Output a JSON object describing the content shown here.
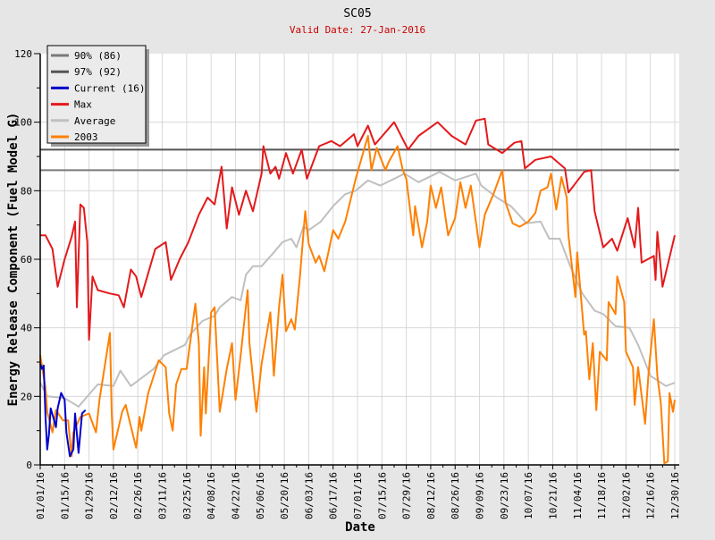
{
  "chart_data": {
    "type": "line",
    "title": "SC05",
    "subtitle": "Valid Date: 27-Jan-2016",
    "xlabel": "Date",
    "ylabel": "Energy Release Component (Fuel Model G)",
    "ylim": [
      0,
      120
    ],
    "yticks": [
      0,
      20,
      40,
      60,
      80,
      100,
      120
    ],
    "xlim": [
      "01/01/16",
      "12/30/16"
    ],
    "xticks": [
      "01/01/16",
      "01/15/16",
      "01/29/16",
      "02/12/16",
      "02/26/16",
      "03/11/16",
      "03/25/16",
      "04/08/16",
      "04/22/16",
      "05/06/16",
      "05/20/16",
      "06/03/16",
      "06/17/16",
      "07/01/16",
      "07/15/16",
      "07/29/16",
      "08/12/16",
      "08/26/16",
      "09/09/16",
      "09/23/16",
      "10/07/16",
      "10/21/16",
      "11/04/16",
      "11/18/16",
      "12/02/16",
      "12/16/16",
      "12/30/16"
    ],
    "grid": true,
    "legend_placement": "top-left",
    "thresholds": [
      {
        "name": "90% (86)",
        "value": 86,
        "color": "#7a7a7a"
      },
      {
        "name": "97% (92)",
        "value": 92,
        "color": "#555555"
      }
    ],
    "series": [
      {
        "name": "Current (16)",
        "color": "#0000cc",
        "points": [
          [
            "01/01/16",
            29.5
          ],
          [
            "01/02/16",
            28
          ],
          [
            "01/03/16",
            29
          ],
          [
            "01/04/16",
            14
          ],
          [
            "01/05/16",
            4.5
          ],
          [
            "01/06/16",
            9
          ],
          [
            "01/07/16",
            16.5
          ],
          [
            "01/09/16",
            13
          ],
          [
            "01/10/16",
            11
          ],
          [
            "01/11/16",
            16.5
          ],
          [
            "01/13/16",
            21
          ],
          [
            "01/15/16",
            19
          ],
          [
            "01/16/16",
            9.5
          ],
          [
            "01/18/16",
            2.5
          ],
          [
            "01/20/16",
            4.5
          ],
          [
            "01/21/16",
            15
          ],
          [
            "01/23/16",
            3.5
          ],
          [
            "01/25/16",
            15
          ],
          [
            "01/27/16",
            16
          ]
        ]
      },
      {
        "name": "Max",
        "color": "#e31a1c",
        "points": [
          [
            "01/01/16",
            67
          ],
          [
            "01/04/16",
            67
          ],
          [
            "01/08/16",
            63
          ],
          [
            "01/11/16",
            52
          ],
          [
            "01/15/16",
            60
          ],
          [
            "01/19/16",
            66.5
          ],
          [
            "01/21/16",
            71
          ],
          [
            "01/22/16",
            46
          ],
          [
            "01/24/16",
            76
          ],
          [
            "01/26/16",
            75
          ],
          [
            "01/28/16",
            65
          ],
          [
            "01/29/16",
            36.5
          ],
          [
            "01/31/16",
            55
          ],
          [
            "02/03/16",
            51
          ],
          [
            "02/10/16",
            50
          ],
          [
            "02/15/16",
            49.5
          ],
          [
            "02/18/16",
            46
          ],
          [
            "02/22/16",
            57
          ],
          [
            "02/25/16",
            55
          ],
          [
            "02/28/16",
            49
          ],
          [
            "03/03/16",
            56
          ],
          [
            "03/07/16",
            63
          ],
          [
            "03/13/16",
            65
          ],
          [
            "03/16/16",
            54
          ],
          [
            "03/21/16",
            60
          ],
          [
            "03/26/16",
            65
          ],
          [
            "04/01/16",
            73
          ],
          [
            "04/06/16",
            78
          ],
          [
            "04/10/16",
            76
          ],
          [
            "04/14/16",
            87
          ],
          [
            "04/17/16",
            69
          ],
          [
            "04/20/16",
            81
          ],
          [
            "04/24/16",
            73
          ],
          [
            "04/28/16",
            80
          ],
          [
            "05/02/16",
            74
          ],
          [
            "05/07/16",
            85
          ],
          [
            "05/08/16",
            93
          ],
          [
            "05/12/16",
            85
          ],
          [
            "05/15/16",
            87
          ],
          [
            "05/17/16",
            83.5
          ],
          [
            "05/21/16",
            91
          ],
          [
            "05/25/16",
            85
          ],
          [
            "05/30/16",
            92
          ],
          [
            "06/02/16",
            83.5
          ],
          [
            "06/09/16",
            93
          ],
          [
            "06/16/16",
            94.5
          ],
          [
            "06/21/16",
            93
          ],
          [
            "06/29/16",
            96.5
          ],
          [
            "07/01/16",
            93
          ],
          [
            "07/07/16",
            99
          ],
          [
            "07/11/16",
            93.5
          ],
          [
            "07/22/16",
            100
          ],
          [
            "07/30/16",
            92
          ],
          [
            "08/05/16",
            96
          ],
          [
            "08/16/16",
            100
          ],
          [
            "08/24/16",
            96
          ],
          [
            "09/01/16",
            93.5
          ],
          [
            "09/07/16",
            100.5
          ],
          [
            "09/12/16",
            101
          ],
          [
            "09/14/16",
            93.5
          ],
          [
            "09/22/16",
            91
          ],
          [
            "09/29/16",
            94
          ],
          [
            "10/03/16",
            94.5
          ],
          [
            "10/05/16",
            86.5
          ],
          [
            "10/11/16",
            89
          ],
          [
            "10/20/16",
            90
          ],
          [
            "10/28/16",
            86.5
          ],
          [
            "10/30/16",
            79.5
          ],
          [
            "11/08/16",
            85.5
          ],
          [
            "11/12/16",
            86
          ],
          [
            "11/14/16",
            74
          ],
          [
            "11/19/16",
            63.5
          ],
          [
            "11/24/16",
            66
          ],
          [
            "11/27/16",
            62.5
          ],
          [
            "12/03/16",
            72
          ],
          [
            "12/07/16",
            63.5
          ],
          [
            "12/09/16",
            75
          ],
          [
            "12/11/16",
            59
          ],
          [
            "12/18/16",
            61
          ],
          [
            "12/19/16",
            54
          ],
          [
            "12/20/16",
            68
          ],
          [
            "12/23/16",
            52
          ],
          [
            "12/30/16",
            67
          ]
        ]
      },
      {
        "name": "Average",
        "color": "#c0c0c0",
        "points": [
          [
            "01/01/16",
            24
          ],
          [
            "01/05/16",
            20
          ],
          [
            "01/15/16",
            19.5
          ],
          [
            "01/23/16",
            17
          ],
          [
            "02/03/16",
            23.5
          ],
          [
            "02/12/16",
            23
          ],
          [
            "02/16/16",
            27.5
          ],
          [
            "02/22/16",
            23
          ],
          [
            "03/06/16",
            28
          ],
          [
            "03/12/16",
            32
          ],
          [
            "03/24/16",
            35
          ],
          [
            "03/27/16",
            38
          ],
          [
            "04/03/16",
            42
          ],
          [
            "04/10/16",
            43.5
          ],
          [
            "04/13/16",
            46
          ],
          [
            "04/20/16",
            49
          ],
          [
            "04/25/16",
            48
          ],
          [
            "04/28/16",
            55.5
          ],
          [
            "05/02/16",
            58
          ],
          [
            "05/07/16",
            58
          ],
          [
            "05/14/16",
            62
          ],
          [
            "05/19/16",
            65
          ],
          [
            "05/24/16",
            66
          ],
          [
            "05/27/16",
            63.5
          ],
          [
            "05/31/16",
            69.5
          ],
          [
            "06/03/16",
            68.5
          ],
          [
            "06/10/16",
            71
          ],
          [
            "06/17/16",
            75.5
          ],
          [
            "06/24/16",
            79
          ],
          [
            "06/30/16",
            80
          ],
          [
            "07/07/16",
            83
          ],
          [
            "07/14/16",
            81.5
          ],
          [
            "07/28/16",
            85
          ],
          [
            "08/05/16",
            82.5
          ],
          [
            "08/17/16",
            85.5
          ],
          [
            "08/26/16",
            83
          ],
          [
            "09/07/16",
            85
          ],
          [
            "09/10/16",
            81.5
          ],
          [
            "09/19/16",
            78
          ],
          [
            "09/27/16",
            75.5
          ],
          [
            "10/06/16",
            70.5
          ],
          [
            "10/14/16",
            71
          ],
          [
            "10/19/16",
            66
          ],
          [
            "10/25/16",
            66
          ],
          [
            "10/31/16",
            58
          ],
          [
            "11/07/16",
            50
          ],
          [
            "11/14/16",
            45
          ],
          [
            "11/19/16",
            44
          ],
          [
            "11/26/16",
            40.5
          ],
          [
            "12/04/16",
            40
          ],
          [
            "12/09/16",
            35
          ],
          [
            "12/16/16",
            26
          ],
          [
            "12/25/16",
            23
          ],
          [
            "12/30/16",
            24
          ]
        ]
      },
      {
        "name": "2003",
        "color": "#ff8000",
        "points": [
          [
            "01/01/16",
            32
          ],
          [
            "01/04/16",
            22.5
          ],
          [
            "01/05/16",
            15.5
          ],
          [
            "01/08/16",
            9.5
          ],
          [
            "01/10/16",
            16
          ],
          [
            "01/14/16",
            13
          ],
          [
            "01/17/16",
            13
          ],
          [
            "01/19/16",
            2.5
          ],
          [
            "01/20/16",
            9.5
          ],
          [
            "01/24/16",
            14
          ],
          [
            "01/29/16",
            15
          ],
          [
            "02/02/16",
            9.5
          ],
          [
            "02/04/16",
            19
          ],
          [
            "02/08/16",
            32
          ],
          [
            "02/10/16",
            38.5
          ],
          [
            "02/11/16",
            15
          ],
          [
            "02/12/16",
            4.5
          ],
          [
            "02/17/16",
            15.5
          ],
          [
            "02/19/16",
            17.5
          ],
          [
            "02/25/16",
            5
          ],
          [
            "02/27/16",
            14
          ],
          [
            "02/28/16",
            10
          ],
          [
            "03/03/16",
            21
          ],
          [
            "03/09/16",
            30.5
          ],
          [
            "03/13/16",
            28.5
          ],
          [
            "03/15/16",
            15
          ],
          [
            "03/17/16",
            10
          ],
          [
            "03/19/16",
            23.5
          ],
          [
            "03/22/16",
            28
          ],
          [
            "03/25/16",
            28
          ],
          [
            "03/30/16",
            47
          ],
          [
            "04/01/16",
            35.5
          ],
          [
            "04/02/16",
            8.5
          ],
          [
            "04/04/16",
            28.5
          ],
          [
            "04/05/16",
            15
          ],
          [
            "04/08/16",
            44.5
          ],
          [
            "04/10/16",
            46
          ],
          [
            "04/13/16",
            15.5
          ],
          [
            "04/17/16",
            28
          ],
          [
            "04/20/16",
            35.5
          ],
          [
            "04/22/16",
            19
          ],
          [
            "04/25/16",
            32
          ],
          [
            "04/29/16",
            51
          ],
          [
            "04/30/16",
            35.5
          ],
          [
            "05/04/16",
            15.5
          ],
          [
            "05/07/16",
            29.5
          ],
          [
            "05/12/16",
            44.5
          ],
          [
            "05/14/16",
            26
          ],
          [
            "05/17/16",
            46
          ],
          [
            "05/19/16",
            55.5
          ],
          [
            "05/21/16",
            39
          ],
          [
            "05/24/16",
            42.5
          ],
          [
            "05/26/16",
            39.5
          ],
          [
            "05/29/16",
            55
          ],
          [
            "06/01/16",
            74
          ],
          [
            "06/03/16",
            64.5
          ],
          [
            "06/07/16",
            59
          ],
          [
            "06/09/16",
            61
          ],
          [
            "06/12/16",
            56.5
          ],
          [
            "06/17/16",
            68.5
          ],
          [
            "06/20/16",
            66
          ],
          [
            "06/24/16",
            71
          ],
          [
            "06/30/16",
            83.5
          ],
          [
            "07/07/16",
            96
          ],
          [
            "07/09/16",
            86
          ],
          [
            "07/12/16",
            92.5
          ],
          [
            "07/17/16",
            86
          ],
          [
            "07/19/16",
            88.5
          ],
          [
            "07/24/16",
            93
          ],
          [
            "07/27/16",
            86
          ],
          [
            "07/29/16",
            83.5
          ],
          [
            "08/02/16",
            67
          ],
          [
            "08/03/16",
            75.5
          ],
          [
            "08/07/16",
            63.5
          ],
          [
            "08/10/16",
            71
          ],
          [
            "08/12/16",
            81.5
          ],
          [
            "08/15/16",
            75
          ],
          [
            "08/18/16",
            81
          ],
          [
            "08/22/16",
            67
          ],
          [
            "08/26/16",
            72
          ],
          [
            "08/29/16",
            82.5
          ],
          [
            "09/01/16",
            75
          ],
          [
            "09/04/16",
            81.5
          ],
          [
            "09/09/16",
            63.5
          ],
          [
            "09/12/16",
            73
          ],
          [
            "09/17/16",
            79
          ],
          [
            "09/22/16",
            86
          ],
          [
            "09/24/16",
            76.5
          ],
          [
            "09/28/16",
            70.5
          ],
          [
            "10/02/16",
            69.5
          ],
          [
            "10/07/16",
            71
          ],
          [
            "10/11/16",
            73.5
          ],
          [
            "10/14/16",
            80
          ],
          [
            "10/18/16",
            81
          ],
          [
            "10/20/16",
            85
          ],
          [
            "10/23/16",
            74.5
          ],
          [
            "10/26/16",
            84
          ],
          [
            "10/29/16",
            78
          ],
          [
            "10/30/16",
            67
          ],
          [
            "11/03/16",
            49
          ],
          [
            "11/04/16",
            62
          ],
          [
            "11/08/16",
            38
          ],
          [
            "11/09/16",
            39
          ],
          [
            "11/11/16",
            25
          ],
          [
            "11/13/16",
            35.5
          ],
          [
            "11/15/16",
            16
          ],
          [
            "11/17/16",
            33
          ],
          [
            "11/21/16",
            30.5
          ],
          [
            "11/22/16",
            47.5
          ],
          [
            "11/26/16",
            44
          ],
          [
            "11/27/16",
            55
          ],
          [
            "12/01/16",
            47.5
          ],
          [
            "12/02/16",
            33
          ],
          [
            "12/06/16",
            28.5
          ],
          [
            "12/07/16",
            17.5
          ],
          [
            "12/09/16",
            28.5
          ],
          [
            "12/13/16",
            12
          ],
          [
            "12/15/16",
            27
          ],
          [
            "12/18/16",
            42.5
          ],
          [
            "12/20/16",
            26
          ],
          [
            "12/22/16",
            18
          ],
          [
            "12/24/16",
            0.5
          ],
          [
            "12/26/16",
            1
          ],
          [
            "12/27/16",
            21
          ],
          [
            "12/29/16",
            15.5
          ],
          [
            "12/30/16",
            19
          ]
        ]
      }
    ],
    "legend": [
      "90% (86)",
      "97% (92)",
      "Current (16)",
      "Max",
      "Average",
      "2003"
    ]
  }
}
